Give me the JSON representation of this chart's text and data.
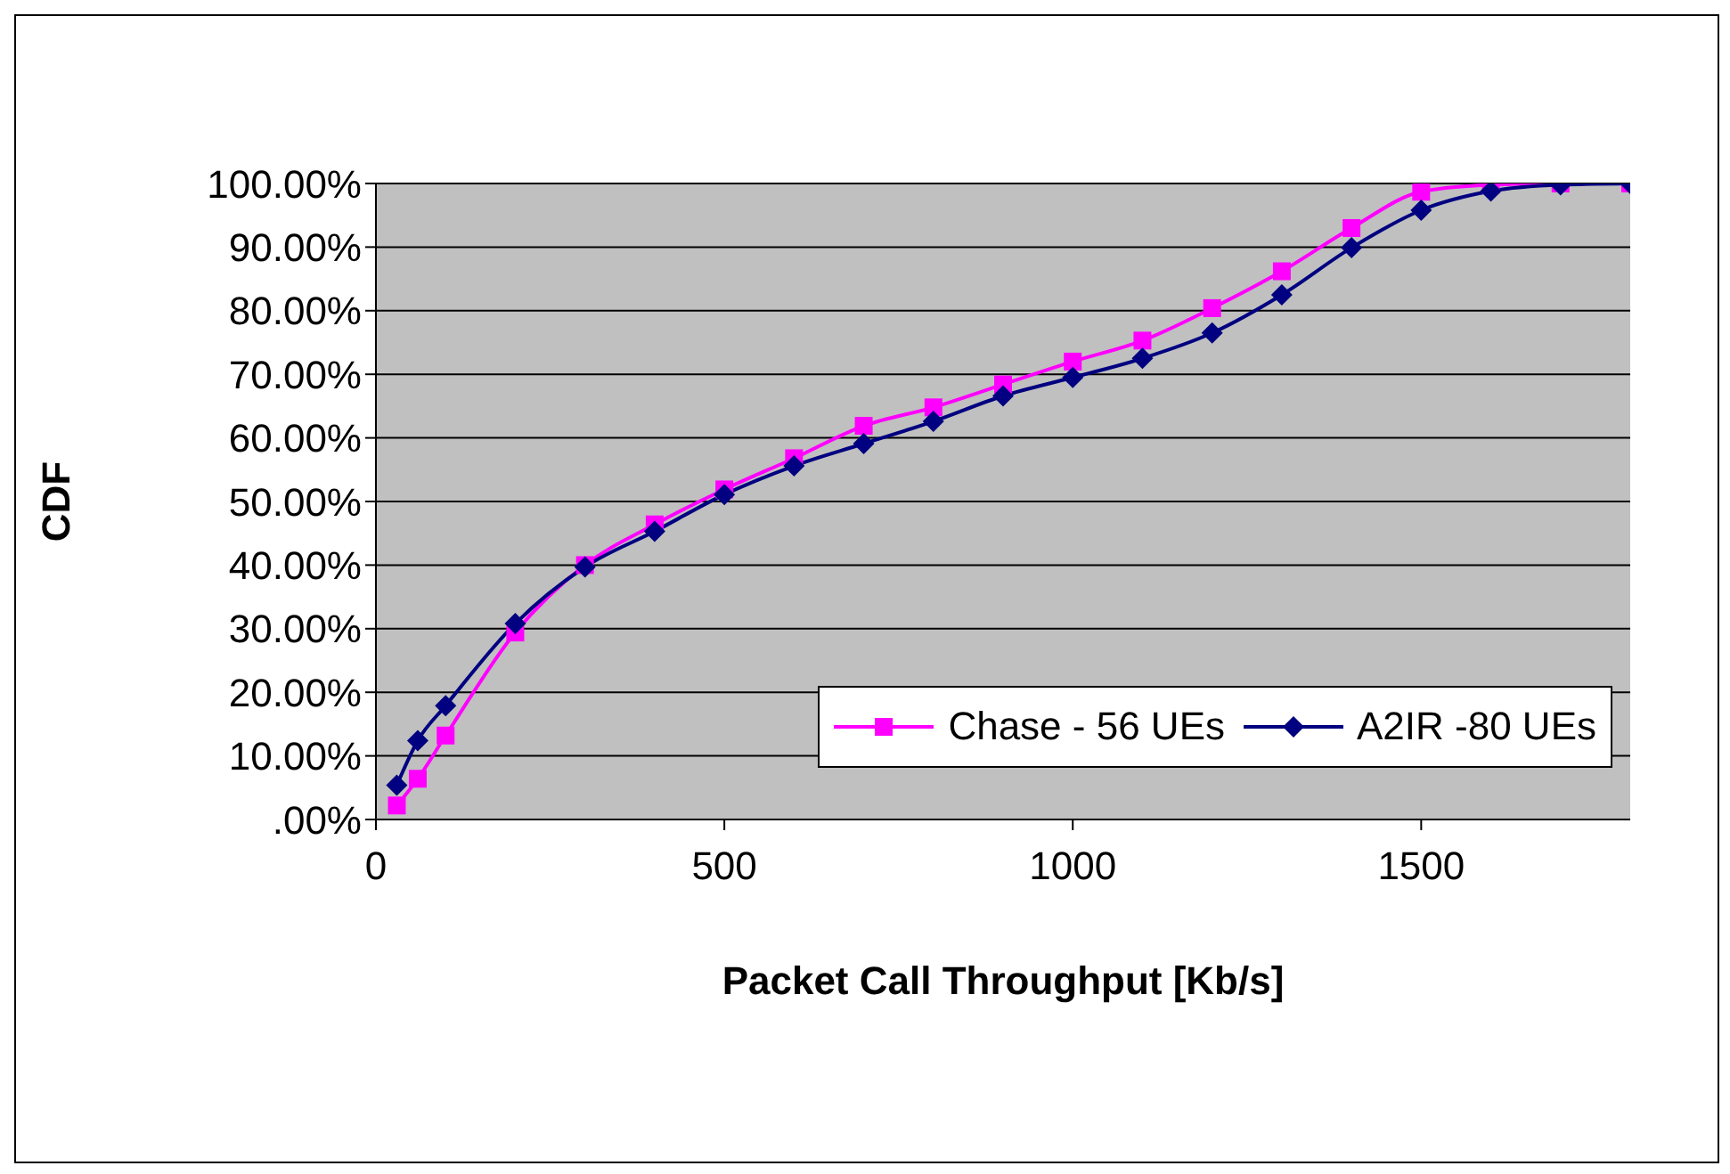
{
  "chart_data": {
    "type": "line",
    "xlabel": "Packet Call Throughput [Kb/s]",
    "ylabel": "CDF",
    "x": [
      30,
      60,
      100,
      200,
      300,
      400,
      500,
      600,
      700,
      800,
      900,
      1000,
      1100,
      1200,
      1300,
      1400,
      1500,
      1600,
      1700,
      1800
    ],
    "series": [
      {
        "name": "Chase - 56 UEs",
        "color": "#ff00ff",
        "marker": "square",
        "values": [
          2.2,
          6.4,
          13.2,
          29.4,
          40,
          46.4,
          51.9,
          56.8,
          61.9,
          64.8,
          68.4,
          72,
          75.3,
          80.4,
          86.2,
          93,
          98.7,
          99.8,
          100,
          100
        ]
      },
      {
        "name": "A2IR -80 UEs",
        "color": "#000080",
        "marker": "diamond",
        "values": [
          5.4,
          12.4,
          17.9,
          30.8,
          39.7,
          45.3,
          51.1,
          55.6,
          59.1,
          62.6,
          66.6,
          69.5,
          72.5,
          76.5,
          82.5,
          89.9,
          95.8,
          98.8,
          99.8,
          100
        ]
      }
    ],
    "xlim": [
      0,
      1800
    ],
    "xticks": [
      0,
      500,
      1000,
      1500
    ],
    "ylim": [
      0,
      100
    ],
    "yticks": [
      {
        "value": 0,
        "label": ".00%"
      },
      {
        "value": 10,
        "label": "10.00%"
      },
      {
        "value": 20,
        "label": "20.00%"
      },
      {
        "value": 30,
        "label": "30.00%"
      },
      {
        "value": 40,
        "label": "40.00%"
      },
      {
        "value": 50,
        "label": "50.00%"
      },
      {
        "value": 60,
        "label": "60.00%"
      },
      {
        "value": 70,
        "label": "70.00%"
      },
      {
        "value": 80,
        "label": "80.00%"
      },
      {
        "value": 90,
        "label": "90.00%"
      },
      {
        "value": 100,
        "label": "100.00%"
      }
    ],
    "grid": "y",
    "legend": "bottom right",
    "line_style": "solid"
  }
}
